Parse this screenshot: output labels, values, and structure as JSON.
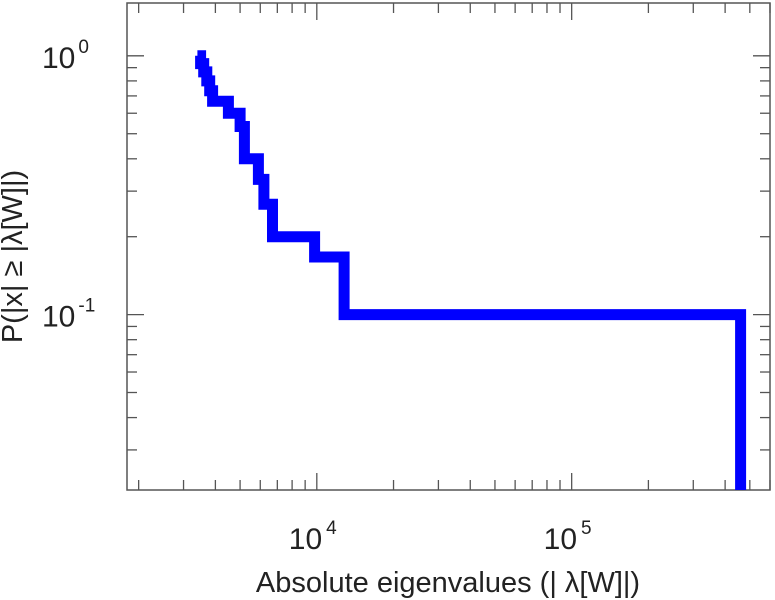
{
  "chart_data": {
    "type": "line",
    "xlabel": "Absolute eigenvalues (|     λ[W]|)",
    "ylabel": "P(|x|  ≥ |λ[W]|)",
    "xscale": "log",
    "yscale": "log",
    "xlim": [
      1800,
      600000
    ],
    "ylim": [
      0.021,
      1.6
    ],
    "grid": false,
    "legend": "none",
    "color": "#0000ff",
    "x_ticks": [
      {
        "value": 10000,
        "base": "10",
        "exp": "4"
      },
      {
        "value": 100000,
        "base": "10",
        "exp": "5"
      }
    ],
    "y_ticks": [
      {
        "value": 1,
        "base": "10",
        "exp": "0"
      },
      {
        "value": 0.1,
        "base": "10",
        "exp": "-1"
      }
    ],
    "series": [
      {
        "style": "step",
        "x": [
          3400,
          3500,
          3600,
          3700,
          3800,
          3900,
          4500,
          5000,
          5200,
          5900,
          6200,
          6700,
          9800,
          12800,
          460000
        ],
        "y": [
          1.0,
          0.933,
          0.867,
          0.8,
          0.733,
          0.667,
          0.6,
          0.533,
          0.4,
          0.333,
          0.267,
          0.2,
          0.167,
          0.1,
          0.033
        ]
      }
    ]
  }
}
